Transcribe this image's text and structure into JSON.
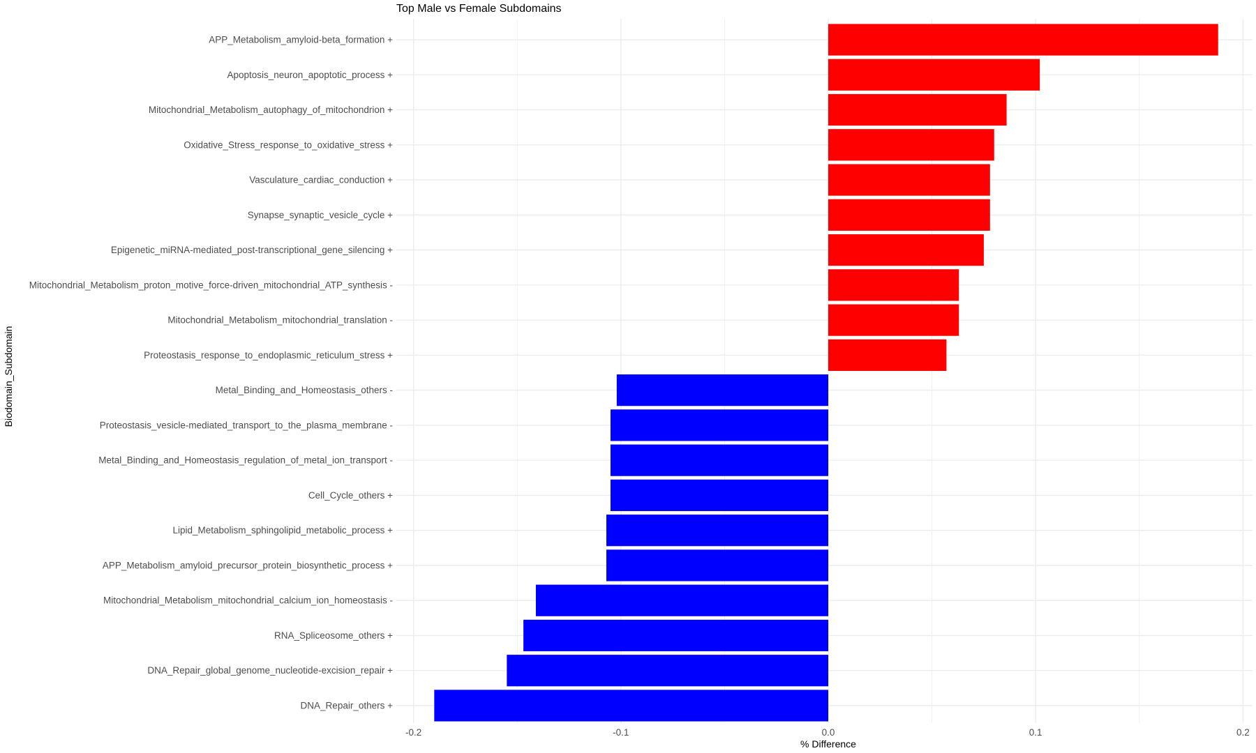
{
  "chart_data": {
    "type": "bar",
    "orientation": "horizontal",
    "title": "Top Male vs Female Subdomains",
    "xlabel": "% Difference",
    "ylabel": "Biodomain_Subdomain",
    "xlim": [
      -0.208,
      0.205
    ],
    "xticks": [
      "-0.2",
      "-0.1",
      "0.0",
      "0.1",
      "0.2"
    ],
    "xtick_values": [
      -0.2,
      -0.1,
      0.0,
      0.1,
      0.2
    ],
    "grid": true,
    "legend": "none",
    "colors": {
      "positive": "#FF0000",
      "negative": "#0000FF",
      "grid": "#EBEBEB"
    },
    "categories": [
      "APP_Metabolism_amyloid-beta_formation +",
      "Apoptosis_neuron_apoptotic_process +",
      "Mitochondrial_Metabolism_autophagy_of_mitochondrion +",
      "Oxidative_Stress_response_to_oxidative_stress +",
      "Vasculature_cardiac_conduction +",
      "Synapse_synaptic_vesicle_cycle +",
      "Epigenetic_miRNA-mediated_post-transcriptional_gene_silencing +",
      "Mitochondrial_Metabolism_proton_motive_force-driven_mitochondrial_ATP_synthesis -",
      "Mitochondrial_Metabolism_mitochondrial_translation -",
      "Proteostasis_response_to_endoplasmic_reticulum_stress +",
      "Metal_Binding_and_Homeostasis_others -",
      "Proteostasis_vesicle-mediated_transport_to_the_plasma_membrane -",
      "Metal_Binding_and_Homeostasis_regulation_of_metal_ion_transport -",
      "Cell_Cycle_others +",
      "Lipid_Metabolism_sphingolipid_metabolic_process +",
      "APP_Metabolism_amyloid_precursor_protein_biosynthetic_process +",
      "Mitochondrial_Metabolism_mitochondrial_calcium_ion_homeostasis -",
      "RNA_Spliceosome_others +",
      "DNA_Repair_global_genome_nucleotide-excision_repair +",
      "DNA_Repair_others +"
    ],
    "values": [
      0.188,
      0.102,
      0.086,
      0.08,
      0.078,
      0.078,
      0.075,
      0.063,
      0.063,
      0.057,
      -0.102,
      -0.105,
      -0.105,
      -0.105,
      -0.107,
      -0.107,
      -0.141,
      -0.147,
      -0.155,
      -0.19
    ]
  }
}
